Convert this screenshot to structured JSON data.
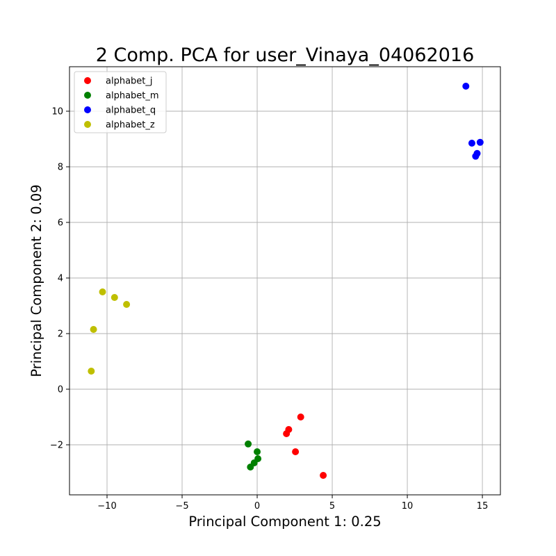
{
  "chart_data": {
    "type": "scatter",
    "title": "2 Comp. PCA for user_Vinaya_04062016",
    "xlabel": "Principal Component 1: 0.25",
    "ylabel": "Principal Component 2: 0.09",
    "xlim": [
      -12.5,
      16.2
    ],
    "ylim": [
      -3.8,
      11.6
    ],
    "xticks": [
      -10,
      -5,
      0,
      5,
      10,
      15
    ],
    "yticks": [
      -2,
      0,
      2,
      4,
      6,
      8,
      10
    ],
    "xtick_labels": [
      "−10",
      "−5",
      "0",
      "5",
      "10",
      "15"
    ],
    "ytick_labels": [
      "−2",
      "0",
      "2",
      "4",
      "6",
      "8",
      "10"
    ],
    "grid": true,
    "legend_position": "top-left",
    "series": [
      {
        "name": "alphabet_j",
        "color": "#ff0000",
        "points": [
          [
            2.9,
            -1.0
          ],
          [
            2.1,
            -1.45
          ],
          [
            1.95,
            -1.6
          ],
          [
            2.55,
            -2.25
          ],
          [
            4.4,
            -3.1
          ]
        ]
      },
      {
        "name": "alphabet_m",
        "color": "#008000",
        "points": [
          [
            -0.6,
            -1.97
          ],
          [
            0.0,
            -2.25
          ],
          [
            0.05,
            -2.5
          ],
          [
            -0.2,
            -2.65
          ],
          [
            -0.45,
            -2.8
          ]
        ]
      },
      {
        "name": "alphabet_q",
        "color": "#0000ff",
        "points": [
          [
            13.9,
            10.9
          ],
          [
            14.3,
            8.85
          ],
          [
            14.85,
            8.88
          ],
          [
            14.65,
            8.48
          ],
          [
            14.55,
            8.38
          ]
        ]
      },
      {
        "name": "alphabet_z",
        "color": "#bfbf00",
        "points": [
          [
            -10.3,
            3.5
          ],
          [
            -9.5,
            3.3
          ],
          [
            -8.7,
            3.05
          ],
          [
            -10.9,
            2.15
          ],
          [
            -11.05,
            0.65
          ]
        ]
      }
    ]
  }
}
